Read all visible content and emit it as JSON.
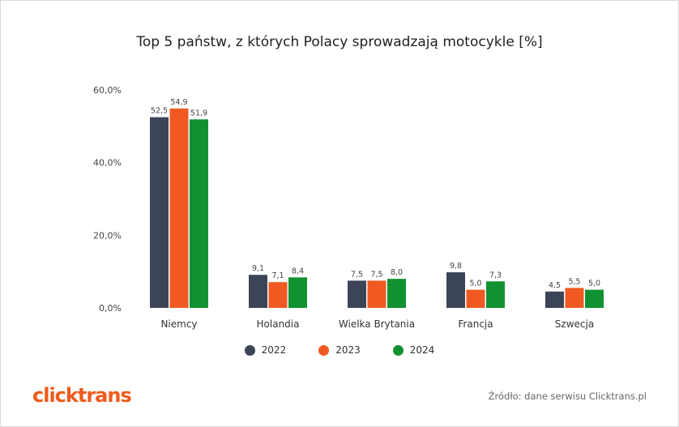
{
  "title": "Top 5 państw, z których Polacy sprowadzają motocykle [%]",
  "chart_data": {
    "type": "bar",
    "title": "Top 5 państw, z których Polacy sprowadzają motocykle [%]",
    "categories": [
      "Niemcy",
      "Holandia",
      "Wielka Brytania",
      "Francja",
      "Szwecja"
    ],
    "series": [
      {
        "name": "2022",
        "color": "#3c4457",
        "values": [
          52.5,
          9.1,
          7.5,
          9.8,
          4.5
        ],
        "labels": [
          "52,5",
          "9,1",
          "7,5",
          "9,8",
          "4,5"
        ]
      },
      {
        "name": "2023",
        "color": "#f05a22",
        "values": [
          54.9,
          7.1,
          7.5,
          5.0,
          5.5
        ],
        "labels": [
          "54,9",
          "7,1",
          "7,5",
          "5,0",
          "5,5"
        ]
      },
      {
        "name": "2024",
        "color": "#119131",
        "values": [
          51.9,
          8.4,
          8.0,
          7.3,
          5.0
        ],
        "labels": [
          "51,9",
          "8,4",
          "8,0",
          "7,3",
          "5,0"
        ]
      }
    ],
    "ylim": [
      0,
      60
    ],
    "yticks": [
      0,
      20,
      40,
      60
    ],
    "ytick_labels": [
      "0,0%",
      "20,0%",
      "40,0%",
      "60,0%"
    ],
    "grid": false,
    "legend_position": "bottom-center"
  },
  "legend": [
    {
      "label": "2022",
      "color": "#3c4457"
    },
    {
      "label": "2023",
      "color": "#f05a22"
    },
    {
      "label": "2024",
      "color": "#119131"
    }
  ],
  "logo_text": "clicktrans",
  "source": "Źródło: dane serwisu Clicktrans.pl"
}
